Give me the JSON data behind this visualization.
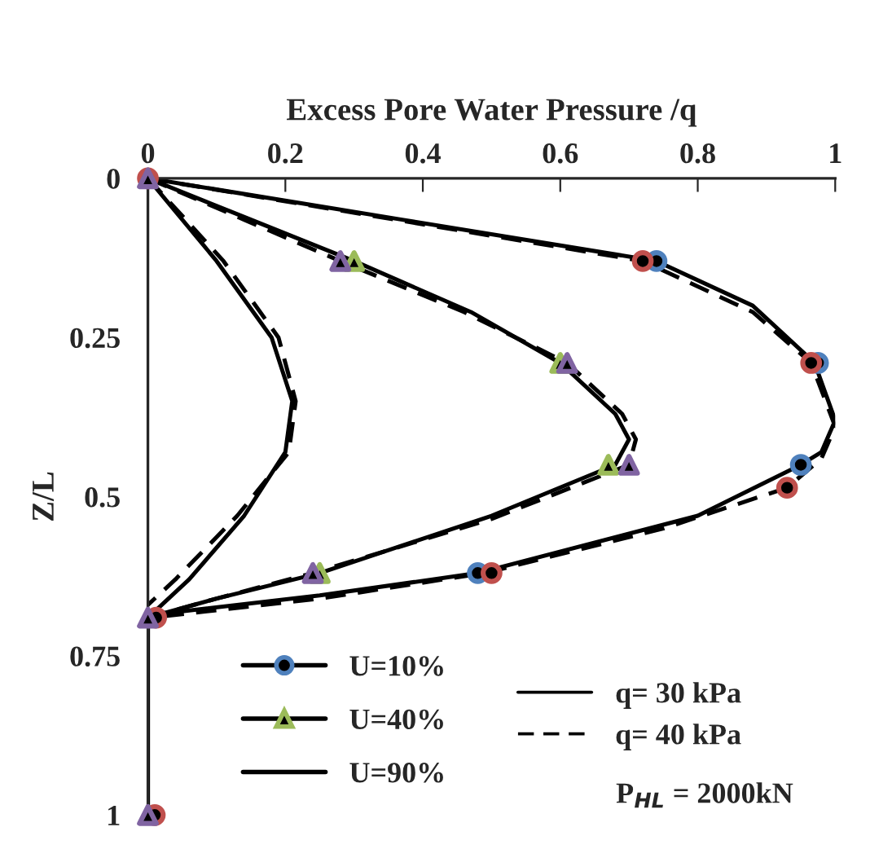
{
  "chart_data": {
    "type": "line",
    "xlabel": "Excess Pore Water Pressure /q",
    "ylabel": "Z/L",
    "xlim": [
      0,
      1
    ],
    "xticks": [
      0,
      0.2,
      0.4,
      0.6,
      0.8,
      1
    ],
    "ylim": [
      1,
      0
    ],
    "yticks": [
      0,
      0.25,
      0.5,
      0.75,
      1
    ],
    "grid": false,
    "legend": "bottom",
    "series": [
      {
        "color": "#000000",
        "line_style": "solid",
        "x": [
          0,
          0.37,
          0.74,
          0.88,
          0.97,
          1.0,
          0.98,
          0.95,
          0.8,
          0.48,
          0.25,
          0.05,
          0,
          0
        ],
        "values": [
          0,
          0.065,
          0.13,
          0.2,
          0.29,
          0.38,
          0.43,
          0.45,
          0.53,
          0.62,
          0.655,
          0.68,
          0.69,
          1
        ]
      },
      {
        "color": "#000000",
        "line_style": "dashed",
        "x": [
          0,
          0.36,
          0.72,
          0.88,
          0.965,
          1.0,
          0.98,
          0.93,
          0.75,
          0.49,
          0.25,
          0.005
        ],
        "values": [
          0,
          0.065,
          0.13,
          0.21,
          0.29,
          0.39,
          0.44,
          0.486,
          0.55,
          0.62,
          0.66,
          0.69
        ]
      },
      {
        "color": "#000000",
        "line_style": "solid",
        "x": [
          0,
          0.15,
          0.3,
          0.47,
          0.6,
          0.68,
          0.7,
          0.68,
          0.5,
          0.25,
          0.1,
          0,
          0
        ],
        "values": [
          0,
          0.065,
          0.13,
          0.21,
          0.29,
          0.37,
          0.41,
          0.45,
          0.53,
          0.62,
          0.66,
          0.69,
          1
        ]
      },
      {
        "color": "#000000",
        "line_style": "dashed",
        "x": [
          0,
          0.14,
          0.28,
          0.46,
          0.61,
          0.69,
          0.71,
          0.7,
          0.5,
          0.24,
          0.1,
          0
        ],
        "values": [
          0,
          0.065,
          0.13,
          0.21,
          0.29,
          0.37,
          0.41,
          0.45,
          0.535,
          0.62,
          0.66,
          0.69
        ]
      },
      {
        "color": "#000000",
        "line_style": "dashed",
        "x": [
          0,
          0.11,
          0.19,
          0.215,
          0.205,
          0.13,
          0.04,
          0
        ],
        "values": [
          0,
          0.13,
          0.25,
          0.35,
          0.43,
          0.53,
          0.63,
          0.67
        ]
      },
      {
        "type": "scatter",
        "name": "U=10%",
        "color": "#4f81bd",
        "marker": "circle",
        "x": [
          0.74,
          0.975,
          0.95,
          0.48
        ],
        "values": [
          0.13,
          0.29,
          0.45,
          0.62
        ]
      },
      {
        "type": "scatter",
        "color": "#c0504d",
        "marker": "circle",
        "x": [
          0,
          0.72,
          0.965,
          0.93,
          0.5,
          0.012,
          0.01
        ],
        "values": [
          0,
          0.13,
          0.29,
          0.486,
          0.62,
          0.69,
          1
        ]
      },
      {
        "type": "scatter",
        "name": "U=40%",
        "color": "#9bbb59",
        "marker": "triangle",
        "x": [
          0.3,
          0.6,
          0.67,
          0.25
        ],
        "values": [
          0.13,
          0.29,
          0.45,
          0.62
        ]
      },
      {
        "type": "scatter",
        "color": "#8064a2",
        "marker": "triangle",
        "x": [
          0,
          0.28,
          0.61,
          0.7,
          0.24,
          0,
          0
        ],
        "values": [
          0,
          0.13,
          0.29,
          0.45,
          0.62,
          0.69,
          1
        ]
      },
      {
        "name": "U=90%",
        "color": "#000000",
        "line_style": "solid",
        "x": [
          0,
          0.1,
          0.18,
          0.21,
          0.2,
          0.14,
          0.06,
          0,
          0
        ],
        "values": [
          0,
          0.13,
          0.25,
          0.35,
          0.43,
          0.53,
          0.63,
          0.69,
          1
        ]
      }
    ],
    "annotations": [
      "q= 30 kPa",
      "q= 40 kPa",
      "P$_{HL}$ = 2000kN"
    ]
  }
}
